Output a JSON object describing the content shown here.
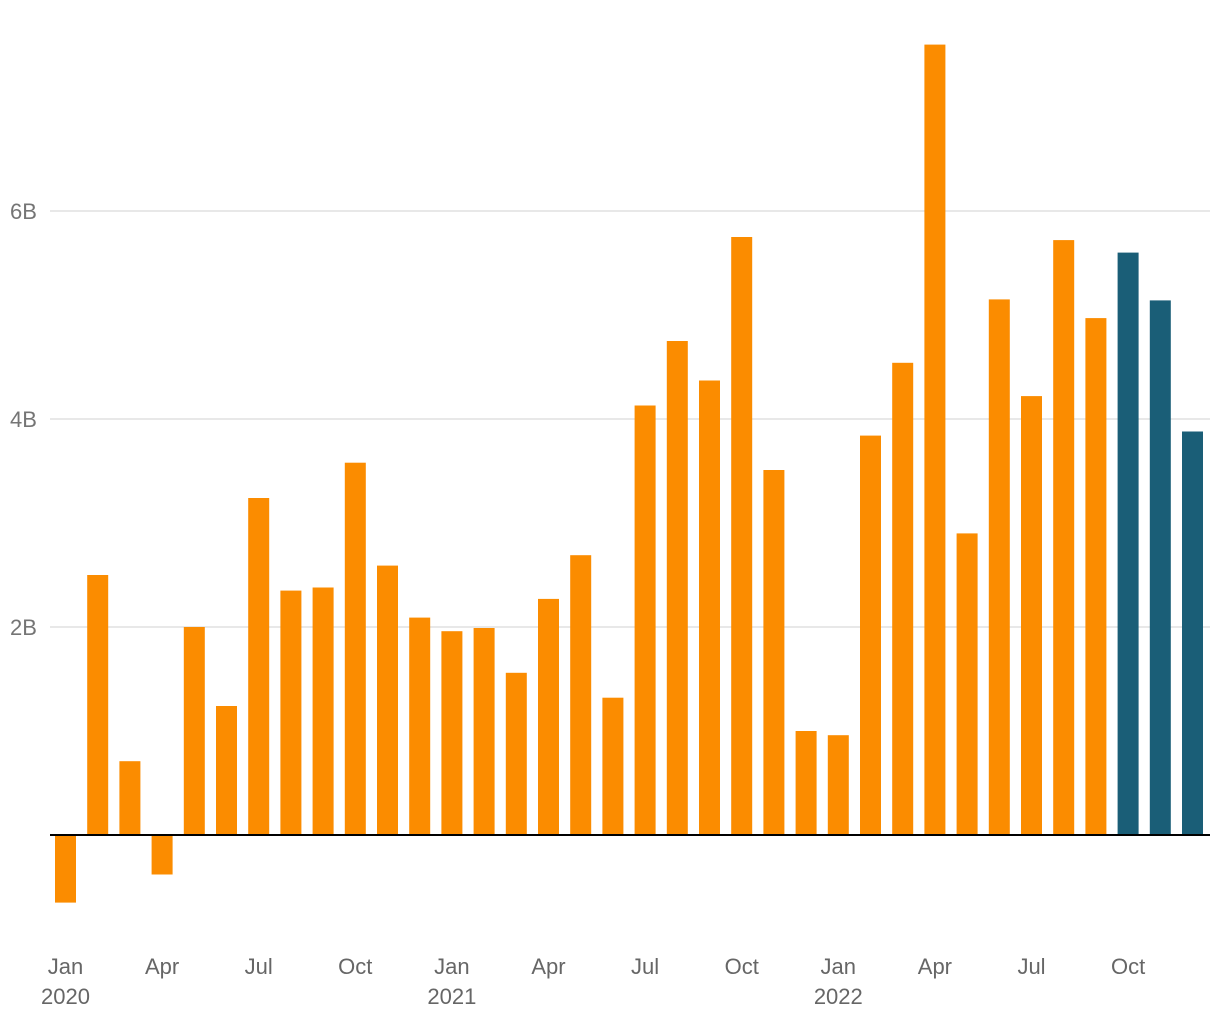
{
  "chart_data": {
    "type": "bar",
    "categories": [
      "2020-01",
      "2020-02",
      "2020-03",
      "2020-04",
      "2020-05",
      "2020-06",
      "2020-07",
      "2020-08",
      "2020-09",
      "2020-10",
      "2020-11",
      "2020-12",
      "2021-01",
      "2021-02",
      "2021-03",
      "2021-04",
      "2021-05",
      "2021-06",
      "2021-07",
      "2021-08",
      "2021-09",
      "2021-10",
      "2021-11",
      "2021-12",
      "2022-01",
      "2022-02",
      "2022-03",
      "2022-04",
      "2022-05",
      "2022-06",
      "2022-07",
      "2022-08",
      "2022-09",
      "2022-10",
      "2022-11",
      "2022-12"
    ],
    "values": [
      -0.65,
      2.5,
      0.71,
      -0.38,
      2.0,
      1.24,
      3.24,
      2.35,
      2.38,
      3.58,
      2.59,
      2.09,
      1.96,
      1.99,
      1.56,
      2.27,
      2.69,
      1.32,
      4.13,
      4.75,
      4.37,
      5.75,
      3.51,
      1.0,
      0.96,
      3.84,
      4.54,
      7.6,
      2.9,
      5.15,
      4.22,
      5.72,
      4.97,
      5.6,
      5.14,
      3.88
    ],
    "colors": [
      "#fb8c00",
      "#fb8c00",
      "#fb8c00",
      "#fb8c00",
      "#fb8c00",
      "#fb8c00",
      "#fb8c00",
      "#fb8c00",
      "#fb8c00",
      "#fb8c00",
      "#fb8c00",
      "#fb8c00",
      "#fb8c00",
      "#fb8c00",
      "#fb8c00",
      "#fb8c00",
      "#fb8c00",
      "#fb8c00",
      "#fb8c00",
      "#fb8c00",
      "#fb8c00",
      "#fb8c00",
      "#fb8c00",
      "#fb8c00",
      "#fb8c00",
      "#fb8c00",
      "#fb8c00",
      "#fb8c00",
      "#fb8c00",
      "#fb8c00",
      "#fb8c00",
      "#fb8c00",
      "#fb8c00",
      "#1a5e77",
      "#1a5e77",
      "#1a5e77"
    ],
    "series_colors": {
      "primary": "#fb8c00",
      "highlight": "#1a5e77"
    },
    "title": "",
    "xlabel": "",
    "ylabel": "",
    "ylim": [
      -1.2,
      8.2
    ],
    "ytick_values": [
      2,
      4,
      6
    ],
    "ytick_labels": [
      "2B",
      "4B",
      "6B"
    ],
    "xtick_labels": [
      {
        "index": 0,
        "month": "Jan",
        "year": "2020"
      },
      {
        "index": 3,
        "month": "Apr",
        "year": ""
      },
      {
        "index": 6,
        "month": "Jul",
        "year": ""
      },
      {
        "index": 9,
        "month": "Oct",
        "year": ""
      },
      {
        "index": 12,
        "month": "Jan",
        "year": "2021"
      },
      {
        "index": 15,
        "month": "Apr",
        "year": ""
      },
      {
        "index": 18,
        "month": "Jul",
        "year": ""
      },
      {
        "index": 21,
        "month": "Oct",
        "year": ""
      },
      {
        "index": 24,
        "month": "Jan",
        "year": "2022"
      },
      {
        "index": 27,
        "month": "Apr",
        "year": ""
      },
      {
        "index": 30,
        "month": "Jul",
        "year": ""
      },
      {
        "index": 33,
        "month": "Oct",
        "year": ""
      }
    ],
    "grid": true,
    "legend": "none"
  }
}
